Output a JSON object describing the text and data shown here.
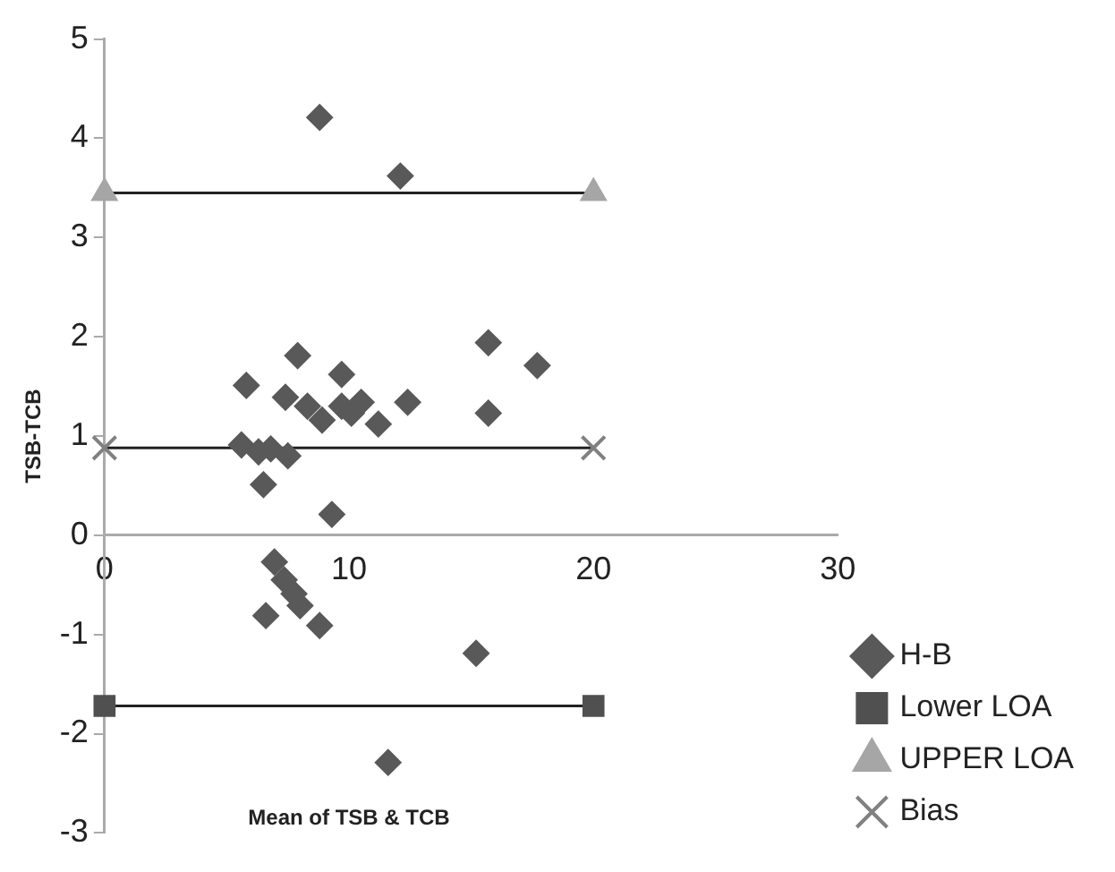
{
  "chart_data": {
    "type": "scatter",
    "xlabel": "Mean of TSB & TCB",
    "ylabel": "TSB-TCB",
    "xlim": [
      0,
      30
    ],
    "xticks": [
      0,
      10,
      20,
      30
    ],
    "ylim": [
      -3,
      5
    ],
    "yticks": [
      -3,
      -2,
      -1,
      0,
      1,
      2,
      3,
      4,
      5
    ],
    "grid": false,
    "legend": "bottom right",
    "series": [
      {
        "name": "H-B",
        "type": "scatter",
        "marker": "diamond",
        "color": "#595959",
        "x": [
          8.8,
          12.1,
          5.8,
          7.9,
          7.4,
          8.3,
          8.9,
          9.7,
          9.7,
          10.1,
          10.5,
          11.2,
          12.4,
          15.7,
          15.7,
          17.7,
          5.6,
          6.3,
          6.8,
          7.5,
          6.5,
          9.3,
          6.95,
          7.35,
          7.75,
          8.0,
          6.6,
          8.8,
          15.2,
          11.6
        ],
        "values": [
          4.21,
          3.62,
          1.51,
          1.81,
          1.39,
          1.3,
          1.16,
          1.62,
          1.3,
          1.23,
          1.34,
          1.12,
          1.34,
          1.94,
          1.23,
          1.71,
          0.91,
          0.84,
          0.87,
          0.8,
          0.51,
          0.21,
          -0.27,
          -0.45,
          -0.59,
          -0.71,
          -0.81,
          -0.91,
          -1.19,
          -2.29
        ]
      },
      {
        "name": "Lower LOA",
        "type": "line",
        "marker": "square",
        "color": "#505050",
        "x": [
          0,
          20
        ],
        "values": [
          -1.72,
          -1.72
        ]
      },
      {
        "name": "UPPER LOA",
        "type": "line",
        "marker": "triangle",
        "color": "#a6a6a6",
        "x": [
          0,
          20
        ],
        "values": [
          3.45,
          3.45
        ]
      },
      {
        "name": "Bias",
        "type": "line",
        "marker": "cross",
        "color": "#808080",
        "x": [
          0,
          20
        ],
        "values": [
          0.88,
          0.88
        ]
      }
    ]
  }
}
